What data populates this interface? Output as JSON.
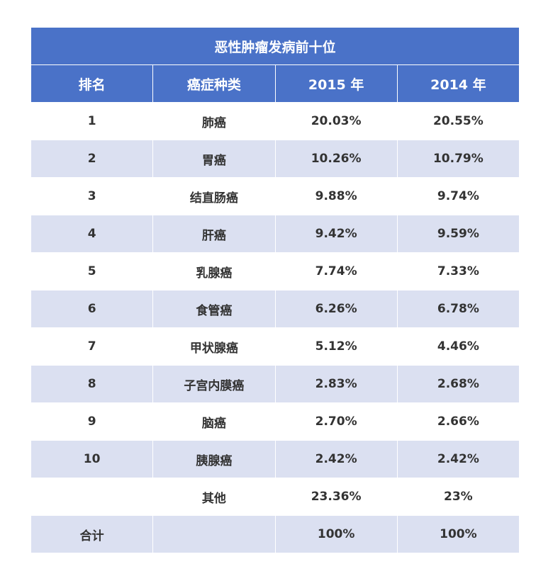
{
  "table": {
    "title": "恶性肿瘤发病前十位",
    "headers": [
      "排名",
      "癌症种类",
      "2015 年",
      "2014 年"
    ],
    "rows": [
      [
        "1",
        "肺癌",
        "20.03%",
        "20.55%"
      ],
      [
        "2",
        "胃癌",
        "10.26%",
        "10.79%"
      ],
      [
        "3",
        "结直肠癌",
        "9.88%",
        "9.74%"
      ],
      [
        "4",
        "肝癌",
        "9.42%",
        "9.59%"
      ],
      [
        "5",
        "乳腺癌",
        "7.74%",
        "7.33%"
      ],
      [
        "6",
        "食管癌",
        "6.26%",
        "6.78%"
      ],
      [
        "7",
        "甲状腺癌",
        "5.12%",
        "4.46%"
      ],
      [
        "8",
        "子宫内膜癌",
        "2.83%",
        "2.68%"
      ],
      [
        "9",
        "脑癌",
        "2.70%",
        "2.66%"
      ],
      [
        "10",
        "胰腺癌",
        "2.42%",
        "2.42%"
      ],
      [
        null,
        "其他",
        "23.36%",
        "23%"
      ],
      [
        "合计",
        null,
        "100%",
        "100%"
      ]
    ]
  }
}
